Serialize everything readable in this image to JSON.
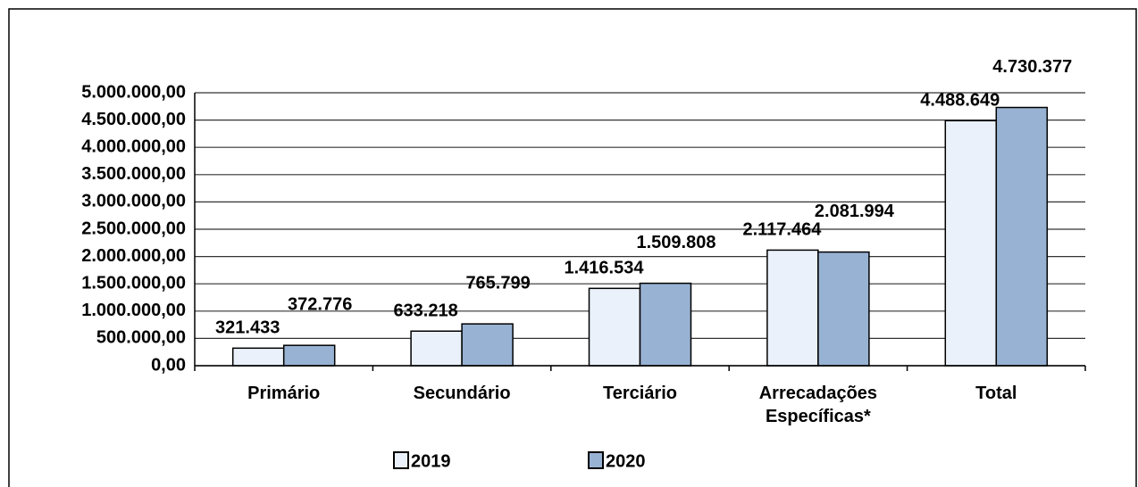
{
  "chart_data": {
    "type": "bar",
    "categories": [
      "Primário",
      "Secundário",
      "Terciário",
      "Arrecadações Específicas*",
      "Total"
    ],
    "series": [
      {
        "name": "2019",
        "color": "#eaf1fa",
        "values": [
          321433,
          633218,
          1416534,
          2117464,
          4488649
        ],
        "value_labels": [
          "321.433",
          "633.218",
          "1.416.534",
          "2.117.464",
          "4.488.649"
        ]
      },
      {
        "name": "2020",
        "color": "#98b2d3",
        "values": [
          372776,
          765799,
          1509808,
          2081994,
          4730377
        ],
        "value_labels": [
          "372.776",
          "765.799",
          "1.509.808",
          "2.081.994",
          "4.730.377"
        ]
      }
    ],
    "ylim": [
      0,
      5000000
    ],
    "yticks": [
      {
        "value": 0,
        "label": "0,00"
      },
      {
        "value": 500000,
        "label": "500.000,00"
      },
      {
        "value": 1000000,
        "label": "1.000.000,00"
      },
      {
        "value": 1500000,
        "label": "1.500.000,00"
      },
      {
        "value": 2000000,
        "label": "2.000.000,00"
      },
      {
        "value": 2500000,
        "label": "2.500.000,00"
      },
      {
        "value": 3000000,
        "label": "3.000.000,00"
      },
      {
        "value": 3500000,
        "label": "3.500.000,00"
      },
      {
        "value": 4000000,
        "label": "4.000.000,00"
      },
      {
        "value": 4500000,
        "label": "4.500.000,00"
      },
      {
        "value": 5000000,
        "label": "5.000.000,00"
      }
    ],
    "grid": true,
    "legend": "bottom"
  }
}
